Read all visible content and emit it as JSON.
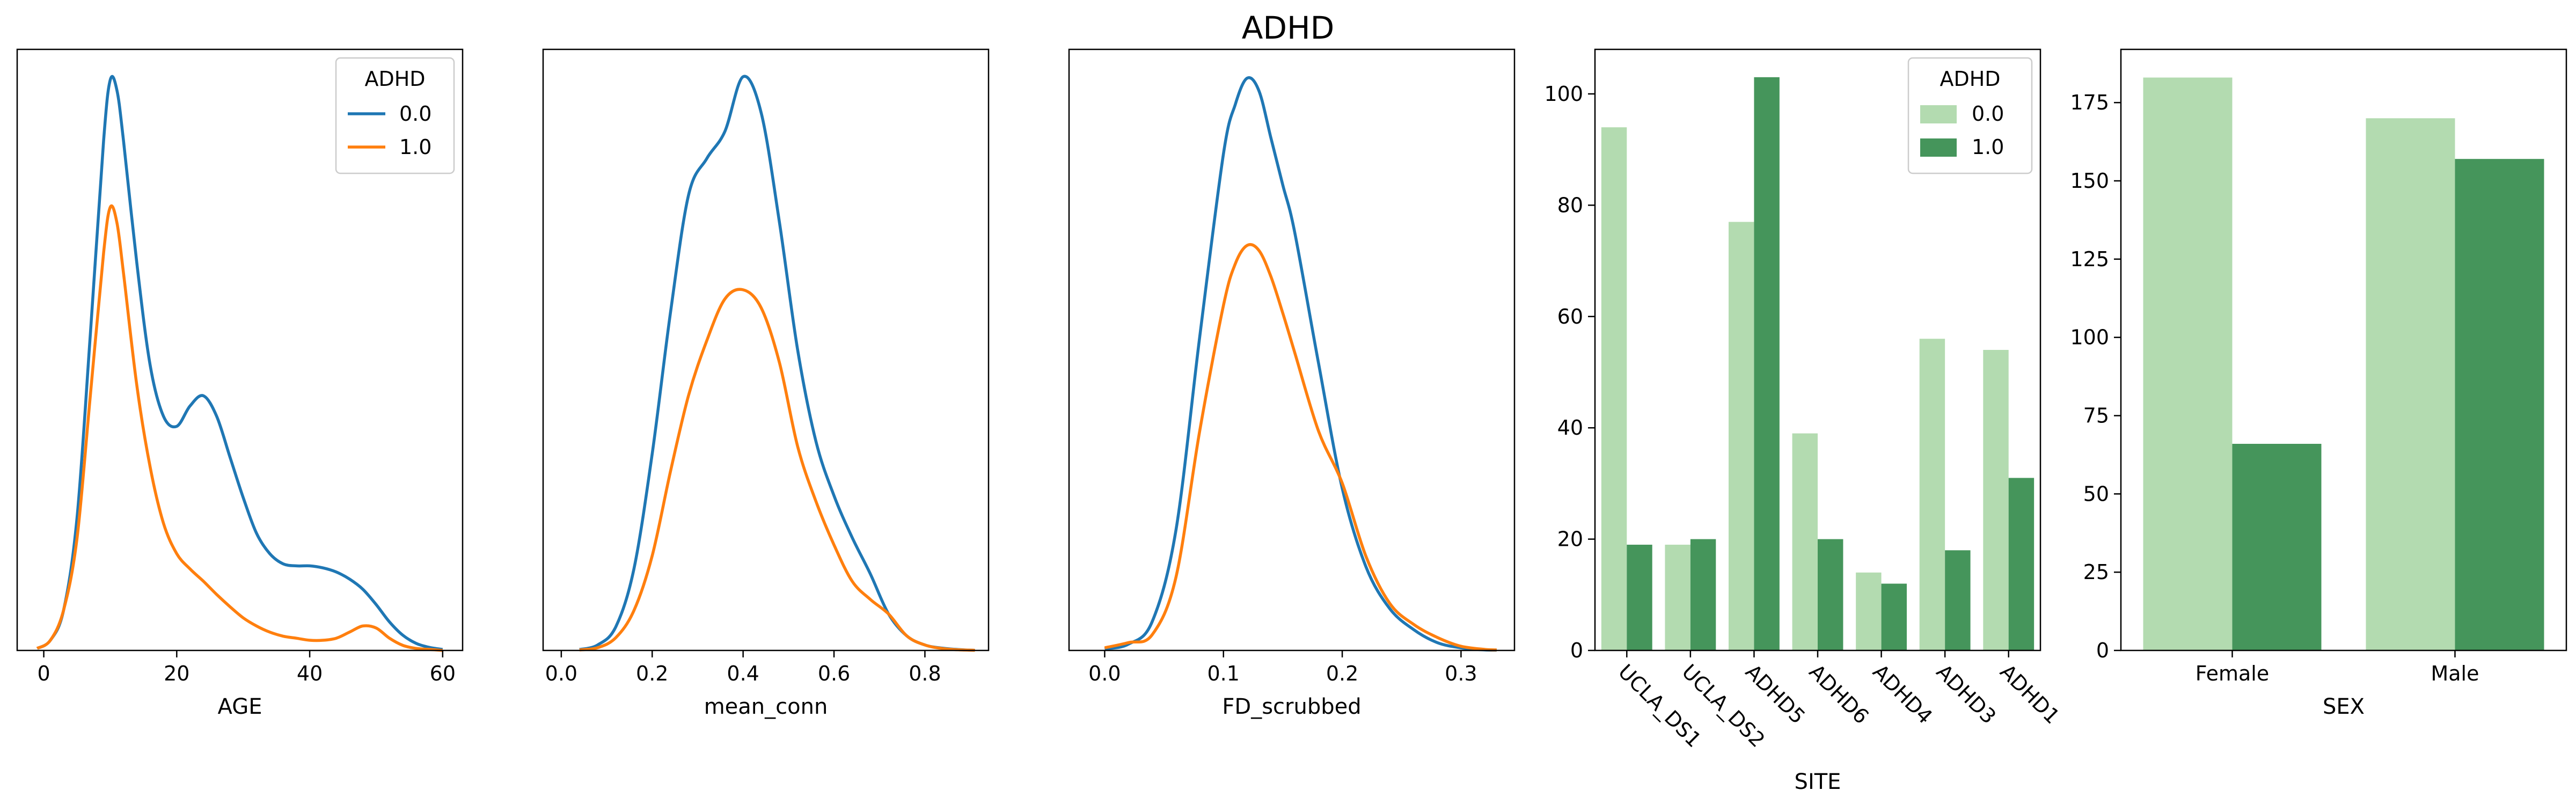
{
  "figure": {
    "title": "ADHD"
  },
  "colors": {
    "kde_0": "#1f77b4",
    "kde_1": "#ff7f0e",
    "bar_0": "#b3dbb0",
    "bar_1": "#45955b"
  },
  "chart_data": [
    {
      "type": "line",
      "subtype": "kde",
      "xlabel": "AGE",
      "ylabel": "",
      "xlim": [
        -4,
        63
      ],
      "xticks": [
        0,
        20,
        40,
        60
      ],
      "ylim": [
        0,
        0.059
      ],
      "yticks_visible": false,
      "legend": {
        "title": "ADHD",
        "placement": "upper right",
        "entries": [
          "0.0",
          "1.0"
        ]
      },
      "series": [
        {
          "name": "0.0",
          "color": "#1f77b4",
          "x": [
            -1,
            1,
            3,
            5,
            7,
            9,
            10,
            11,
            12,
            14,
            16,
            18,
            20,
            22,
            24,
            26,
            28,
            30,
            32,
            34,
            36,
            38,
            40,
            42,
            44,
            46,
            48,
            50,
            52,
            54,
            56,
            58,
            60
          ],
          "y": [
            0.0002,
            0.001,
            0.004,
            0.013,
            0.031,
            0.05,
            0.056,
            0.055,
            0.05,
            0.038,
            0.028,
            0.023,
            0.022,
            0.024,
            0.025,
            0.023,
            0.019,
            0.015,
            0.0115,
            0.0095,
            0.0085,
            0.0083,
            0.0083,
            0.0081,
            0.0077,
            0.007,
            0.006,
            0.0045,
            0.0028,
            0.0015,
            0.0007,
            0.0003,
            0.0001
          ]
        },
        {
          "name": "1.0",
          "color": "#ff7f0e",
          "x": [
            -1,
            1,
            3,
            5,
            7,
            9,
            10,
            11,
            12,
            14,
            16,
            18,
            20,
            22,
            24,
            26,
            28,
            30,
            32,
            34,
            36,
            38,
            40,
            42,
            44,
            46,
            48,
            50,
            52,
            54,
            56,
            58,
            60
          ],
          "y": [
            0.0002,
            0.001,
            0.004,
            0.011,
            0.025,
            0.039,
            0.0435,
            0.042,
            0.037,
            0.026,
            0.018,
            0.0125,
            0.0095,
            0.008,
            0.0068,
            0.0055,
            0.0043,
            0.0032,
            0.0024,
            0.0018,
            0.0014,
            0.0012,
            0.001,
            0.001,
            0.0012,
            0.0018,
            0.0024,
            0.0022,
            0.0012,
            0.0005,
            0.0002,
            0.0001,
            0.0
          ]
        }
      ]
    },
    {
      "type": "line",
      "subtype": "kde",
      "xlabel": "mean_conn",
      "ylabel": "",
      "xlim": [
        -0.04,
        0.94
      ],
      "xticks": [
        0.0,
        0.2,
        0.4,
        0.6,
        0.8
      ],
      "ylim": [
        0,
        3.3
      ],
      "yticks_visible": false,
      "series": [
        {
          "name": "0.0",
          "color": "#1f77b4",
          "x": [
            0.04,
            0.08,
            0.12,
            0.16,
            0.2,
            0.24,
            0.28,
            0.32,
            0.36,
            0.4,
            0.44,
            0.48,
            0.52,
            0.56,
            0.6,
            0.64,
            0.68,
            0.72,
            0.76,
            0.8,
            0.84,
            0.88,
            0.91
          ],
          "y": [
            0.005,
            0.03,
            0.13,
            0.45,
            1.08,
            1.85,
            2.5,
            2.7,
            2.85,
            3.15,
            2.95,
            2.35,
            1.65,
            1.15,
            0.85,
            0.62,
            0.42,
            0.2,
            0.08,
            0.03,
            0.012,
            0.004,
            0.001
          ]
        },
        {
          "name": "1.0",
          "color": "#ff7f0e",
          "x": [
            0.04,
            0.08,
            0.12,
            0.16,
            0.2,
            0.24,
            0.28,
            0.32,
            0.36,
            0.4,
            0.44,
            0.48,
            0.52,
            0.56,
            0.6,
            0.64,
            0.68,
            0.72,
            0.76,
            0.8,
            0.84,
            0.88,
            0.91
          ],
          "y": [
            0.003,
            0.015,
            0.07,
            0.22,
            0.52,
            0.98,
            1.4,
            1.7,
            1.93,
            1.98,
            1.88,
            1.58,
            1.12,
            0.82,
            0.58,
            0.38,
            0.28,
            0.2,
            0.08,
            0.03,
            0.01,
            0.003,
            0.001
          ]
        }
      ]
    },
    {
      "type": "line",
      "subtype": "kde",
      "xlabel": "FD_scrubbed",
      "ylabel": "",
      "xlim": [
        -0.03,
        0.345
      ],
      "xticks": [
        0.0,
        0.1,
        0.2,
        0.3
      ],
      "ylim": [
        0,
        11.5
      ],
      "yticks_visible": false,
      "series": [
        {
          "name": "0.0",
          "color": "#1f77b4",
          "x": [
            0.0,
            0.02,
            0.04,
            0.06,
            0.08,
            0.1,
            0.11,
            0.12,
            0.13,
            0.14,
            0.15,
            0.16,
            0.18,
            0.2,
            0.22,
            0.24,
            0.26,
            0.28,
            0.3,
            0.32,
            0.33
          ],
          "y": [
            0.03,
            0.12,
            0.55,
            2.3,
            6.0,
            9.5,
            10.45,
            10.95,
            10.7,
            9.8,
            8.9,
            8.0,
            5.5,
            3.1,
            1.6,
            0.8,
            0.4,
            0.15,
            0.05,
            0.01,
            0.005
          ]
        },
        {
          "name": "1.0",
          "color": "#ff7f0e",
          "x": [
            0.0,
            0.02,
            0.04,
            0.06,
            0.08,
            0.1,
            0.11,
            0.12,
            0.13,
            0.14,
            0.15,
            0.16,
            0.18,
            0.2,
            0.22,
            0.24,
            0.26,
            0.28,
            0.3,
            0.32,
            0.33
          ],
          "y": [
            0.05,
            0.15,
            0.3,
            1.4,
            4.2,
            6.6,
            7.4,
            7.75,
            7.65,
            7.15,
            6.45,
            5.7,
            4.2,
            3.2,
            1.8,
            0.9,
            0.5,
            0.25,
            0.08,
            0.02,
            0.01
          ]
        }
      ]
    },
    {
      "type": "bar",
      "xlabel": "SITE",
      "ylabel": "",
      "categories": [
        "UCLA_DS1",
        "UCLA_DS2",
        "ADHD5",
        "ADHD6",
        "ADHD4",
        "ADHD3",
        "ADHD1"
      ],
      "ylim": [
        0,
        108
      ],
      "yticks": [
        0,
        20,
        40,
        60,
        80,
        100
      ],
      "legend": {
        "title": "ADHD",
        "placement": "upper right",
        "entries": [
          "0.0",
          "1.0"
        ]
      },
      "series": [
        {
          "name": "0.0",
          "color": "#b3dbb0",
          "values": [
            94,
            19,
            77,
            39,
            14,
            56,
            54
          ]
        },
        {
          "name": "1.0",
          "color": "#45955b",
          "values": [
            19,
            20,
            103,
            20,
            12,
            18,
            31
          ]
        }
      ]
    },
    {
      "type": "bar",
      "xlabel": "SEX",
      "ylabel": "",
      "categories": [
        "Female",
        "Male"
      ],
      "ylim": [
        0,
        192
      ],
      "yticks": [
        0,
        25,
        50,
        75,
        100,
        125,
        150,
        175
      ],
      "series": [
        {
          "name": "0.0",
          "color": "#b3dbb0",
          "values": [
            183,
            170
          ]
        },
        {
          "name": "1.0",
          "color": "#45955b",
          "values": [
            66,
            157
          ]
        }
      ]
    }
  ]
}
